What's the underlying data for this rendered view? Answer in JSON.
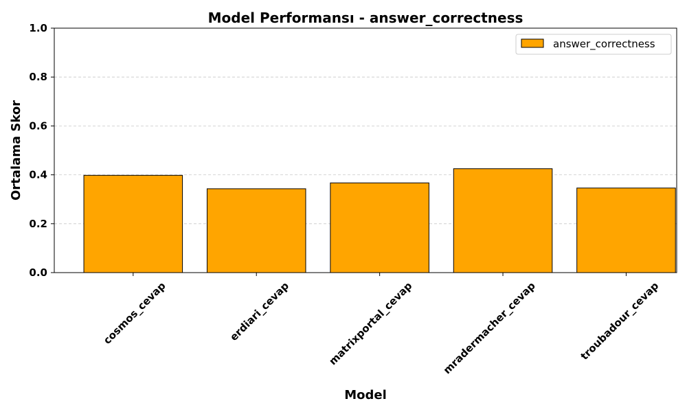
{
  "chart_data": {
    "type": "bar",
    "title": "Model Performansı - answer_correctness",
    "xlabel": "Model",
    "ylabel": "Ortalama Skor",
    "categories": [
      "cosmos_cevap",
      "erdiari_cevap",
      "matrixportal_cevap",
      "mradermacher_cevap",
      "troubadour_cevap"
    ],
    "series": [
      {
        "name": "answer_correctness",
        "values": [
          0.398,
          0.343,
          0.367,
          0.425,
          0.346
        ]
      }
    ],
    "ylim": [
      0,
      1.0
    ],
    "yticks": [
      "0.0",
      "0.2",
      "0.4",
      "0.6",
      "0.8",
      "1.0"
    ],
    "grid": "horizontal-dashed",
    "legend_position": "top-right",
    "colors": {
      "bar": "#ffa500",
      "edge": "#000000",
      "grid": "#c8c8c8"
    }
  }
}
